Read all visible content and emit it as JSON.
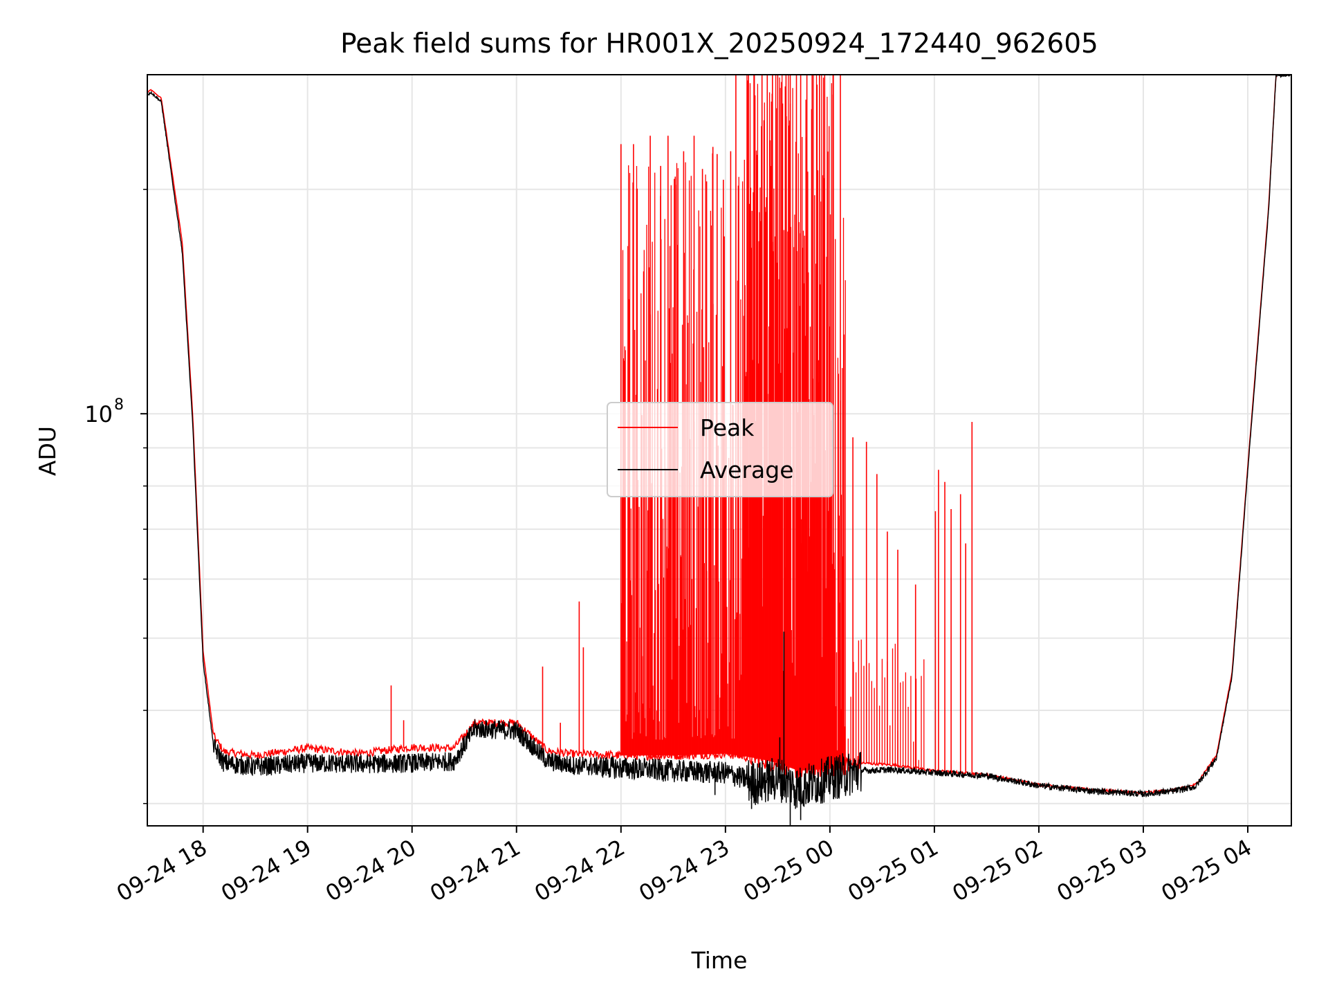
{
  "chart_data": {
    "type": "line",
    "title": "Peak field sums for HR001X_20250924_172440_962605",
    "xlabel": "Time",
    "ylabel": "ADU",
    "yscale": "log",
    "ylim": [
      28000000,
      285000000
    ],
    "xlim_hours": [
      17.466,
      28.417
    ],
    "grid": true,
    "legend_position": "center",
    "x_ticks": [
      {
        "label": "09-24 18",
        "hour": 18
      },
      {
        "label": "09-24 19",
        "hour": 19
      },
      {
        "label": "09-24 20",
        "hour": 20
      },
      {
        "label": "09-24 21",
        "hour": 21
      },
      {
        "label": "09-24 22",
        "hour": 22
      },
      {
        "label": "09-24 23",
        "hour": 23
      },
      {
        "label": "09-25 00",
        "hour": 24
      },
      {
        "label": "09-25 01",
        "hour": 25
      },
      {
        "label": "09-25 02",
        "hour": 26
      },
      {
        "label": "09-25 03",
        "hour": 27
      },
      {
        "label": "09-25 04",
        "hour": 28
      }
    ],
    "y_ticks": [
      {
        "base": "10",
        "exp": "8",
        "value": 100000000
      }
    ],
    "series": [
      {
        "name": "Peak",
        "color": "#ff0000",
        "x": [
          17.47,
          17.5,
          17.6,
          17.8,
          17.9,
          18.0,
          18.1,
          18.2,
          18.5,
          19.0,
          19.5,
          20.0,
          20.4,
          20.6,
          21.0,
          21.3,
          21.5,
          22.0,
          22.5,
          23.0,
          23.3,
          23.5,
          23.7,
          24.0,
          24.3,
          24.6,
          25.0,
          25.5,
          26.0,
          26.5,
          27.0,
          27.3,
          27.5,
          27.7,
          27.85,
          28.0,
          28.2,
          28.27,
          28.41
        ],
        "y": [
          270000000,
          272000000,
          265000000,
          170000000,
          100000000,
          48000000,
          37000000,
          35200000,
          34800000,
          35600000,
          35000000,
          35700000,
          35600000,
          38500000,
          38500000,
          35300000,
          35000000,
          34800000,
          34800000,
          35000000,
          34500000,
          34000000,
          33200000,
          33400000,
          34000000,
          33800000,
          33200000,
          32800000,
          31800000,
          31300000,
          31000000,
          31300000,
          31800000,
          34800000,
          45000000,
          85000000,
          190000000,
          285000000,
          285000000
        ]
      },
      {
        "name": "Average",
        "color": "#000000",
        "x": [
          17.47,
          17.5,
          17.6,
          17.8,
          17.9,
          18.0,
          18.1,
          18.2,
          18.5,
          19.0,
          19.5,
          20.0,
          20.4,
          20.6,
          21.0,
          21.3,
          21.5,
          22.0,
          22.5,
          23.0,
          23.3,
          23.5,
          23.7,
          24.0,
          24.3,
          24.6,
          25.0,
          25.5,
          26.0,
          26.5,
          27.0,
          27.3,
          27.5,
          27.7,
          27.85,
          28.0,
          28.2,
          28.27,
          28.41
        ],
        "y": [
          268000000,
          270000000,
          262000000,
          165000000,
          97000000,
          46500000,
          35800000,
          34000000,
          33600000,
          34000000,
          33900000,
          34000000,
          34200000,
          37800000,
          37600000,
          34200000,
          33800000,
          33500000,
          33200000,
          33000000,
          32000000,
          32500000,
          31500000,
          32500000,
          33200000,
          33300000,
          33000000,
          32700000,
          31700000,
          31200000,
          30900000,
          31200000,
          31600000,
          34500000,
          44500000,
          84000000,
          188000000,
          284000000,
          285000000
        ]
      }
    ],
    "peak_spikes": {
      "x": [
        19.8,
        19.92,
        21.25,
        21.42,
        21.6,
        21.64,
        22.0,
        22.03,
        22.12,
        22.15,
        22.2,
        22.28,
        22.38,
        22.45,
        22.52,
        22.6,
        22.7,
        22.78,
        22.82,
        22.88,
        22.92,
        22.98,
        23.05,
        23.1,
        23.22,
        23.28,
        23.35,
        23.4,
        23.45,
        23.5,
        23.58,
        23.62,
        23.68,
        23.72,
        23.78,
        23.83,
        23.9,
        23.95,
        24.03,
        24.1,
        24.22,
        24.35,
        24.45,
        24.55,
        24.65,
        24.82,
        25.01,
        25.04,
        25.1,
        25.16,
        25.25,
        25.3,
        25.36
      ],
      "y": [
        43200000,
        38800000,
        45800000,
        38500000,
        56000000,
        48600000,
        230000000,
        99600000,
        230000000,
        200000000,
        99600000,
        236000000,
        215000000,
        236000000,
        208000000,
        225000000,
        236000000,
        213000000,
        205000000,
        228000000,
        223000000,
        206000000,
        225000000,
        285000000,
        285000000,
        222000000,
        285000000,
        285000000,
        285000000,
        285000000,
        285000000,
        285000000,
        285000000,
        285000000,
        285000000,
        285000000,
        285000000,
        285000000,
        285000000,
        285000000,
        93000000,
        91700000,
        83000000,
        69500000,
        65700000,
        59000000,
        74000000,
        84100000,
        81000000,
        74500000,
        78000000,
        67000000,
        97500000
      ]
    },
    "average_spikes": {
      "x": [
        22.6,
        22.9,
        23.25,
        23.4,
        23.52,
        23.56,
        23.62,
        23.66,
        23.72,
        23.8
      ],
      "y": [
        33800000,
        30800000,
        29500000,
        32500000,
        36800000,
        51000000,
        27200000,
        29800000,
        28500000,
        30200000
      ]
    }
  }
}
